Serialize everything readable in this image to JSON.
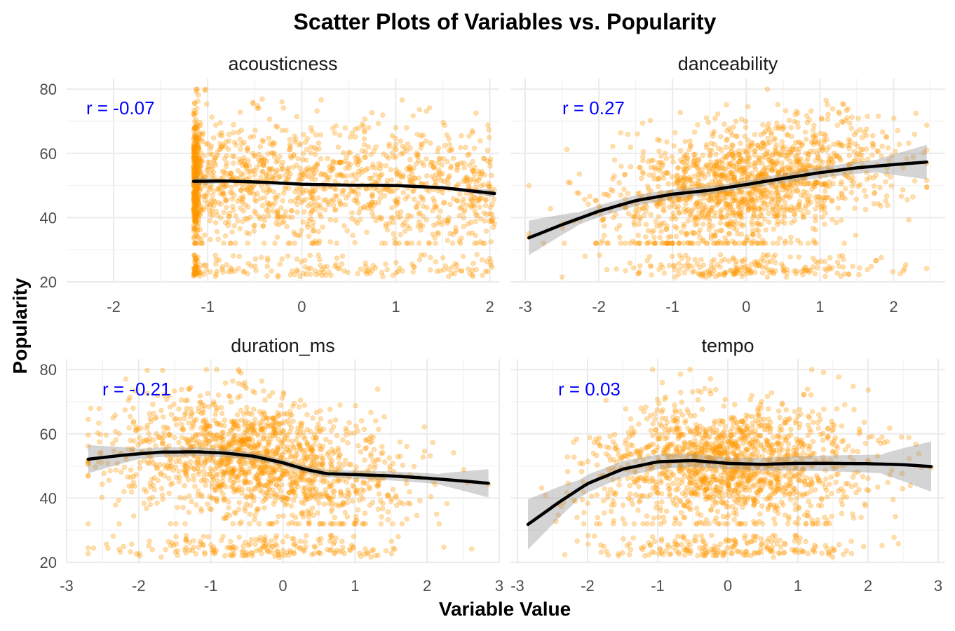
{
  "chart_data": {
    "type": "scatter",
    "title": "Scatter Plots of Variables vs. Popularity",
    "xlabel": "Variable Value",
    "ylabel": "Popularity",
    "point_color": "#ff9900",
    "smooth_color": "#000000",
    "band_color": "#999999",
    "annotation_color": "#0000ff",
    "panels": [
      {
        "name": "acousticness",
        "strip": "acousticness",
        "r_label": "r = -0.07",
        "xlim": [
          -2.5,
          2.1
        ],
        "ylim": [
          20,
          82
        ],
        "xticks": [
          -2,
          -1,
          0,
          1,
          2
        ],
        "yticks": [
          20,
          40,
          60,
          80
        ],
        "xtick_labels": [
          "-2",
          "-1",
          "0",
          "1",
          "2"
        ],
        "ytick_labels": [
          "20",
          "40",
          "60",
          "80"
        ],
        "x_range": [
          -1.15,
          2.05
        ],
        "x_dist": "skew_left",
        "smooth": {
          "x": [
            -1.15,
            -0.8,
            -0.4,
            0.0,
            0.5,
            1.0,
            1.5,
            2.05
          ],
          "y": [
            51.3,
            51.4,
            51.0,
            50.4,
            50.1,
            50.0,
            49.3,
            47.5
          ]
        },
        "band_halfwidth": 0.5
      },
      {
        "name": "danceability",
        "strip": "danceability",
        "r_label": "r = 0.27",
        "xlim": [
          -3.2,
          2.7
        ],
        "ylim": [
          20,
          82
        ],
        "xticks": [
          -3,
          -2,
          -1,
          0,
          1,
          2
        ],
        "yticks": [
          20,
          40,
          60,
          80
        ],
        "xtick_labels": [
          "-3",
          "-2",
          "-1",
          "0",
          "1",
          "2"
        ],
        "ytick_labels": [
          "20",
          "40",
          "60",
          "80"
        ],
        "x_range": [
          -2.95,
          2.45
        ],
        "x_dist": "normal",
        "smooth": {
          "x": [
            -2.95,
            -2.5,
            -2.0,
            -1.5,
            -1.0,
            -0.5,
            0.0,
            0.5,
            1.0,
            1.5,
            2.0,
            2.45
          ],
          "y": [
            33.7,
            37.8,
            42.0,
            45.3,
            47.3,
            48.5,
            50.3,
            52.2,
            54.0,
            55.5,
            56.5,
            57.3
          ]
        },
        "band_halfwidth": 2.2
      },
      {
        "name": "duration_ms",
        "strip": "duration_ms",
        "r_label": "r = -0.21",
        "xlim": [
          -3.0,
          3.0
        ],
        "ylim": [
          20,
          82
        ],
        "xticks": [
          -3,
          -2,
          -1,
          0,
          1,
          2,
          3
        ],
        "yticks": [
          20,
          40,
          60,
          80
        ],
        "xtick_labels": [
          "-3",
          "-2",
          "-1",
          "0",
          "1",
          "2",
          "3"
        ],
        "ytick_labels": [
          "20",
          "40",
          "60",
          "80"
        ],
        "x_range": [
          -2.7,
          2.85
        ],
        "x_dist": "normal_left",
        "smooth": {
          "x": [
            -2.7,
            -2.2,
            -1.7,
            -1.2,
            -0.8,
            -0.4,
            0.0,
            0.3,
            0.6,
            1.0,
            1.5,
            2.0,
            2.5,
            2.85
          ],
          "y": [
            52.1,
            53.4,
            54.3,
            54.4,
            54.0,
            53.0,
            51.0,
            49.0,
            47.6,
            47.3,
            46.9,
            46.2,
            45.3,
            44.6
          ]
        },
        "band_halfwidth": 1.8
      },
      {
        "name": "tempo",
        "strip": "tempo",
        "r_label": "r = 0.03",
        "xlim": [
          -3.1,
          3.1
        ],
        "ylim": [
          20,
          82
        ],
        "xticks": [
          -3,
          -2,
          -1,
          0,
          1,
          2,
          3
        ],
        "yticks": [
          20,
          40,
          60,
          80
        ],
        "xtick_labels": [
          "-3",
          "-2",
          "-1",
          "0",
          "1",
          "2",
          "3"
        ],
        "ytick_labels": [
          "20",
          "40",
          "60",
          "80"
        ],
        "x_range": [
          -2.9,
          2.9
        ],
        "x_dist": "normal",
        "smooth": {
          "x": [
            -2.85,
            -2.4,
            -2.0,
            -1.5,
            -1.0,
            -0.5,
            0.0,
            0.5,
            1.0,
            1.5,
            2.0,
            2.5,
            2.9
          ],
          "y": [
            31.8,
            38.8,
            44.5,
            49.0,
            51.3,
            51.7,
            50.8,
            50.5,
            50.8,
            50.8,
            50.7,
            50.4,
            49.8
          ]
        },
        "band_halfwidth": 3.2
      }
    ]
  }
}
